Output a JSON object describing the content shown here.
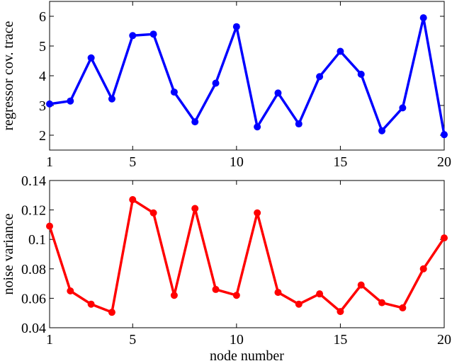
{
  "chart_data": [
    {
      "type": "line",
      "ylabel": "regressor cov. trace",
      "x": [
        1,
        2,
        3,
        4,
        5,
        6,
        7,
        8,
        9,
        10,
        11,
        12,
        13,
        14,
        15,
        16,
        17,
        18,
        19,
        20
      ],
      "series": [
        {
          "color": "#0000ff",
          "values": [
            3.05,
            3.15,
            4.6,
            3.22,
            5.35,
            5.4,
            3.45,
            2.45,
            3.75,
            5.65,
            2.28,
            3.42,
            2.38,
            3.97,
            4.82,
            4.05,
            2.15,
            2.92,
            5.95,
            2.02
          ]
        }
      ],
      "xlim": [
        1,
        20
      ],
      "xticks": [
        1,
        5,
        10,
        15,
        20
      ],
      "ylim": [
        1.5,
        6.5
      ],
      "yticks": [
        2,
        3,
        4,
        5,
        6
      ],
      "markers": true
    },
    {
      "type": "line",
      "ylabel": "noise variance",
      "xlabel": "node number",
      "x": [
        1,
        2,
        3,
        4,
        5,
        6,
        7,
        8,
        9,
        10,
        11,
        12,
        13,
        14,
        15,
        16,
        17,
        18,
        19,
        20
      ],
      "series": [
        {
          "color": "#ff0000",
          "values": [
            0.109,
            0.065,
            0.056,
            0.0505,
            0.127,
            0.118,
            0.062,
            0.121,
            0.066,
            0.062,
            0.118,
            0.064,
            0.056,
            0.063,
            0.051,
            0.069,
            0.057,
            0.0535,
            0.08,
            0.101
          ]
        }
      ],
      "xlim": [
        1,
        20
      ],
      "xticks": [
        1,
        5,
        10,
        15,
        20
      ],
      "ylim": [
        0.04,
        0.14
      ],
      "yticks": [
        0.04,
        0.06,
        0.08,
        0.1,
        0.12,
        0.14
      ],
      "markers": true
    }
  ]
}
